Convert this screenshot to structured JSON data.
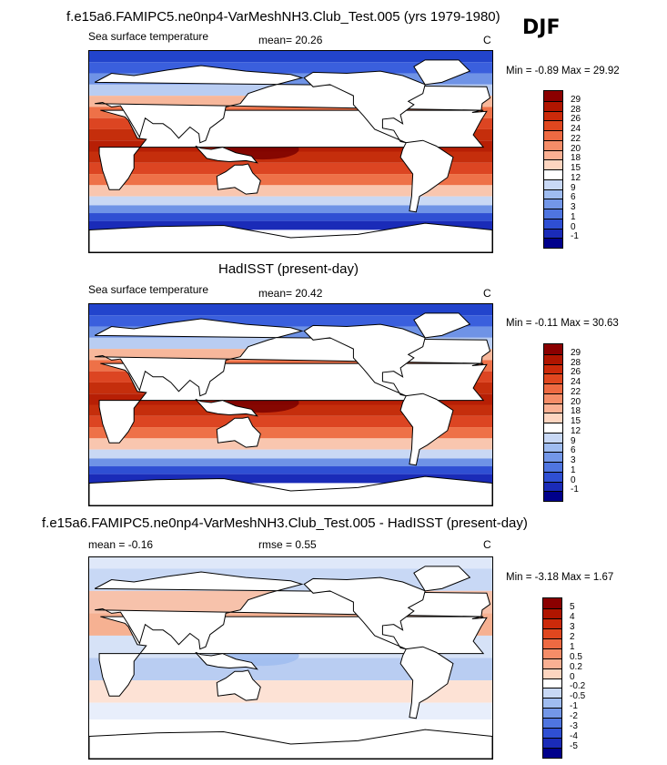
{
  "header": {
    "main_title": "f.e15a6.FAMIPC5.ne0np4-VarMeshNH3.Club_Test.005 (yrs 1979-1980)",
    "season": "DJF"
  },
  "panels": [
    {
      "id": "model",
      "title": "",
      "left_label": "Sea surface temperature",
      "center_label": "mean=  20.26",
      "unit": "C",
      "minmax": "Min =  -0.89 Max =  29.92",
      "colorbar": {
        "labels": [
          "29",
          "28",
          "26",
          "24",
          "22",
          "20",
          "18",
          "15",
          "12",
          "9",
          "6",
          "3",
          "1",
          "0",
          "-1"
        ],
        "colors": [
          "#8b0000",
          "#b01500",
          "#cc2a0a",
          "#e0471f",
          "#ee6a42",
          "#f58d68",
          "#fab093",
          "#fdd5c0",
          "#ffffff",
          "#c8d8f5",
          "#9fbcf0",
          "#7397e8",
          "#4f75e0",
          "#2f4fd3",
          "#1a2bb8",
          "#00008b"
        ]
      },
      "map": {
        "description": "sea surface temperature field",
        "lat_bands": [
          {
            "lat": 80,
            "color": "#2244cc"
          },
          {
            "lat": 70,
            "color": "#3a5fdd"
          },
          {
            "lat": 60,
            "color": "#6f93e6"
          },
          {
            "lat": 50,
            "color": "#b9cdf2"
          },
          {
            "lat": 40,
            "color": "#f7b79b"
          },
          {
            "lat": 30,
            "color": "#ee7148"
          },
          {
            "lat": 20,
            "color": "#dc4522"
          },
          {
            "lat": 10,
            "color": "#c52e0c"
          },
          {
            "lat": 0,
            "color": "#b71f05"
          },
          {
            "lat": -10,
            "color": "#c52e0c"
          },
          {
            "lat": -20,
            "color": "#dc4522"
          },
          {
            "lat": -30,
            "color": "#ee7148"
          },
          {
            "lat": -40,
            "color": "#f9c6af"
          },
          {
            "lat": -48,
            "color": "#c9d8f4"
          },
          {
            "lat": -55,
            "color": "#6f93e6"
          },
          {
            "lat": -62,
            "color": "#2f4fd3"
          },
          {
            "lat": -70,
            "color": "#1a2bb8"
          },
          {
            "lat": -90,
            "color": "#ffffff"
          }
        ],
        "warm_pool_color": "#7a0000"
      }
    },
    {
      "id": "obs",
      "title": "HadISST (present-day)",
      "left_label": "Sea surface temperature",
      "center_label": "mean=  20.42",
      "unit": "C",
      "minmax": "Min =  -0.11 Max =  30.63",
      "colorbar": {
        "labels": [
          "29",
          "28",
          "26",
          "24",
          "22",
          "20",
          "18",
          "15",
          "12",
          "9",
          "6",
          "3",
          "1",
          "0",
          "-1"
        ],
        "colors": [
          "#8b0000",
          "#b01500",
          "#cc2a0a",
          "#e0471f",
          "#ee6a42",
          "#f58d68",
          "#fab093",
          "#fdd5c0",
          "#ffffff",
          "#c8d8f5",
          "#9fbcf0",
          "#7397e8",
          "#4f75e0",
          "#2f4fd3",
          "#1a2bb8",
          "#00008b"
        ]
      },
      "map": {
        "description": "sea surface temperature field",
        "lat_bands": [
          {
            "lat": 80,
            "color": "#2244cc"
          },
          {
            "lat": 70,
            "color": "#3a5fdd"
          },
          {
            "lat": 60,
            "color": "#6f93e6"
          },
          {
            "lat": 50,
            "color": "#b9cdf2"
          },
          {
            "lat": 40,
            "color": "#f7b79b"
          },
          {
            "lat": 30,
            "color": "#ee7148"
          },
          {
            "lat": 20,
            "color": "#dc4522"
          },
          {
            "lat": 10,
            "color": "#c52e0c"
          },
          {
            "lat": 0,
            "color": "#b71f05"
          },
          {
            "lat": -10,
            "color": "#c52e0c"
          },
          {
            "lat": -20,
            "color": "#dc4522"
          },
          {
            "lat": -30,
            "color": "#ee7148"
          },
          {
            "lat": -40,
            "color": "#f9c6af"
          },
          {
            "lat": -48,
            "color": "#c9d8f4"
          },
          {
            "lat": -55,
            "color": "#6f93e6"
          },
          {
            "lat": -62,
            "color": "#2f4fd3"
          },
          {
            "lat": -70,
            "color": "#1a2bb8"
          },
          {
            "lat": -90,
            "color": "#ffffff"
          }
        ],
        "warm_pool_color": "#7a0000"
      }
    },
    {
      "id": "diff",
      "title": "f.e15a6.FAMIPC5.ne0np4-VarMeshNH3.Club_Test.005 - HadISST (present-day)",
      "left_label": "mean =  -0.16",
      "center_label": "rmse =   0.55",
      "unit": "C",
      "minmax": "Min =  -3.18 Max =   1.67",
      "colorbar": {
        "labels": [
          "5",
          "4",
          "3",
          "2",
          "1",
          "0.5",
          "0.2",
          "0",
          "-0.2",
          "-0.5",
          "-1",
          "-2",
          "-3",
          "-4",
          "-5"
        ],
        "colors": [
          "#8b0000",
          "#b01500",
          "#cc2a0a",
          "#e0471f",
          "#ee6a42",
          "#f58d68",
          "#fab093",
          "#fdd5c0",
          "#ffffff",
          "#c8d8f5",
          "#9fbcf0",
          "#7397e8",
          "#4f75e0",
          "#2f4fd3",
          "#1a2bb8",
          "#00008b"
        ]
      },
      "map": {
        "description": "sea surface temperature difference field",
        "lat_bands": [
          {
            "lat": 80,
            "color": "#dfe8f9"
          },
          {
            "lat": 60,
            "color": "#c8d8f5"
          },
          {
            "lat": 40,
            "color": "#f7c2ab"
          },
          {
            "lat": 20,
            "color": "#f6b192"
          },
          {
            "lat": 0,
            "color": "#d6e2f7"
          },
          {
            "lat": -20,
            "color": "#b9cdf2"
          },
          {
            "lat": -40,
            "color": "#fde2d5"
          },
          {
            "lat": -55,
            "color": "#e8eefb"
          },
          {
            "lat": -90,
            "color": "#ffffff"
          }
        ],
        "warm_pool_color": "#9fbcf0"
      }
    }
  ]
}
